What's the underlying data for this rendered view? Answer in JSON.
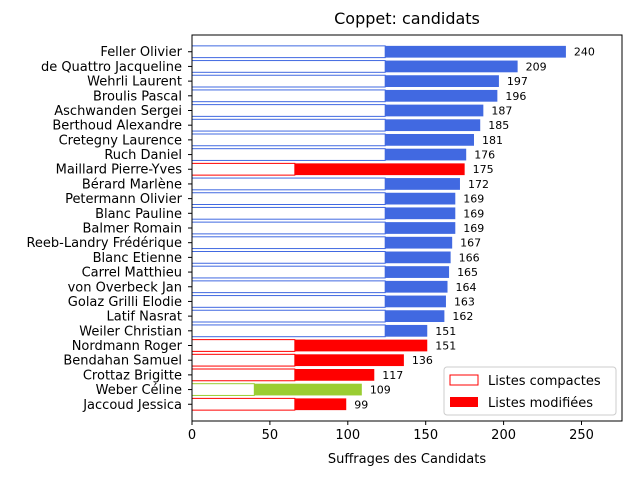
{
  "chart_data": {
    "type": "bar",
    "orientation": "horizontal",
    "title": "Coppet: candidats",
    "xlabel": "Suffrages des Candidats",
    "ylabel": "",
    "xlim": [
      0,
      276
    ],
    "xticks": [
      0,
      50,
      100,
      150,
      200,
      250
    ],
    "grid": false,
    "legend_position": "lower right",
    "legend": [
      {
        "label": "Listes compactes",
        "style": "outline",
        "color": "#ff0000"
      },
      {
        "label": "Listes modifiées",
        "style": "filled",
        "color": "#ff0000"
      }
    ],
    "series": [
      {
        "name": "Listes compactes",
        "key": "compactes"
      },
      {
        "name": "Listes modifiées",
        "key": "modifiees"
      }
    ],
    "candidates": [
      {
        "name": "Feller Olivier",
        "compactes": 124,
        "modifiees": 116,
        "total": 240,
        "color": "#4169e1"
      },
      {
        "name": "de Quattro Jacqueline",
        "compactes": 124,
        "modifiees": 85,
        "total": 209,
        "color": "#4169e1"
      },
      {
        "name": "Wehrli Laurent",
        "compactes": 124,
        "modifiees": 73,
        "total": 197,
        "color": "#4169e1"
      },
      {
        "name": "Broulis Pascal",
        "compactes": 124,
        "modifiees": 72,
        "total": 196,
        "color": "#4169e1"
      },
      {
        "name": "Aschwanden Sergei",
        "compactes": 124,
        "modifiees": 63,
        "total": 187,
        "color": "#4169e1"
      },
      {
        "name": "Berthoud Alexandre",
        "compactes": 124,
        "modifiees": 61,
        "total": 185,
        "color": "#4169e1"
      },
      {
        "name": "Cretegny Laurence",
        "compactes": 124,
        "modifiees": 57,
        "total": 181,
        "color": "#4169e1"
      },
      {
        "name": "Ruch Daniel",
        "compactes": 124,
        "modifiees": 52,
        "total": 176,
        "color": "#4169e1"
      },
      {
        "name": "Maillard Pierre-Yves",
        "compactes": 66,
        "modifiees": 109,
        "total": 175,
        "color": "#ff0000"
      },
      {
        "name": "Bérard Marlène",
        "compactes": 124,
        "modifiees": 48,
        "total": 172,
        "color": "#4169e1"
      },
      {
        "name": "Petermann Olivier",
        "compactes": 124,
        "modifiees": 45,
        "total": 169,
        "color": "#4169e1"
      },
      {
        "name": "Blanc Pauline",
        "compactes": 124,
        "modifiees": 45,
        "total": 169,
        "color": "#4169e1"
      },
      {
        "name": "Balmer Romain",
        "compactes": 124,
        "modifiees": 45,
        "total": 169,
        "color": "#4169e1"
      },
      {
        "name": "Reeb-Landry Frédérique",
        "compactes": 124,
        "modifiees": 43,
        "total": 167,
        "color": "#4169e1"
      },
      {
        "name": "Blanc Etienne",
        "compactes": 124,
        "modifiees": 42,
        "total": 166,
        "color": "#4169e1"
      },
      {
        "name": "Carrel Matthieu",
        "compactes": 124,
        "modifiees": 41,
        "total": 165,
        "color": "#4169e1"
      },
      {
        "name": "von Overbeck Jan",
        "compactes": 124,
        "modifiees": 40,
        "total": 164,
        "color": "#4169e1"
      },
      {
        "name": "Golaz Grilli Elodie",
        "compactes": 124,
        "modifiees": 39,
        "total": 163,
        "color": "#4169e1"
      },
      {
        "name": "Latif Nasrat",
        "compactes": 124,
        "modifiees": 38,
        "total": 162,
        "color": "#4169e1"
      },
      {
        "name": "Weiler Christian",
        "compactes": 124,
        "modifiees": 27,
        "total": 151,
        "color": "#4169e1"
      },
      {
        "name": "Nordmann Roger",
        "compactes": 66,
        "modifiees": 85,
        "total": 151,
        "color": "#ff0000"
      },
      {
        "name": "Bendahan Samuel",
        "compactes": 66,
        "modifiees": 70,
        "total": 136,
        "color": "#ff0000"
      },
      {
        "name": "Crottaz Brigitte",
        "compactes": 66,
        "modifiees": 51,
        "total": 117,
        "color": "#ff0000"
      },
      {
        "name": "Weber Céline",
        "compactes": 40,
        "modifiees": 69,
        "total": 109,
        "color": "#9acd32"
      },
      {
        "name": "Jaccoud Jessica",
        "compactes": 66,
        "modifiees": 33,
        "total": 99,
        "color": "#ff0000"
      }
    ]
  }
}
